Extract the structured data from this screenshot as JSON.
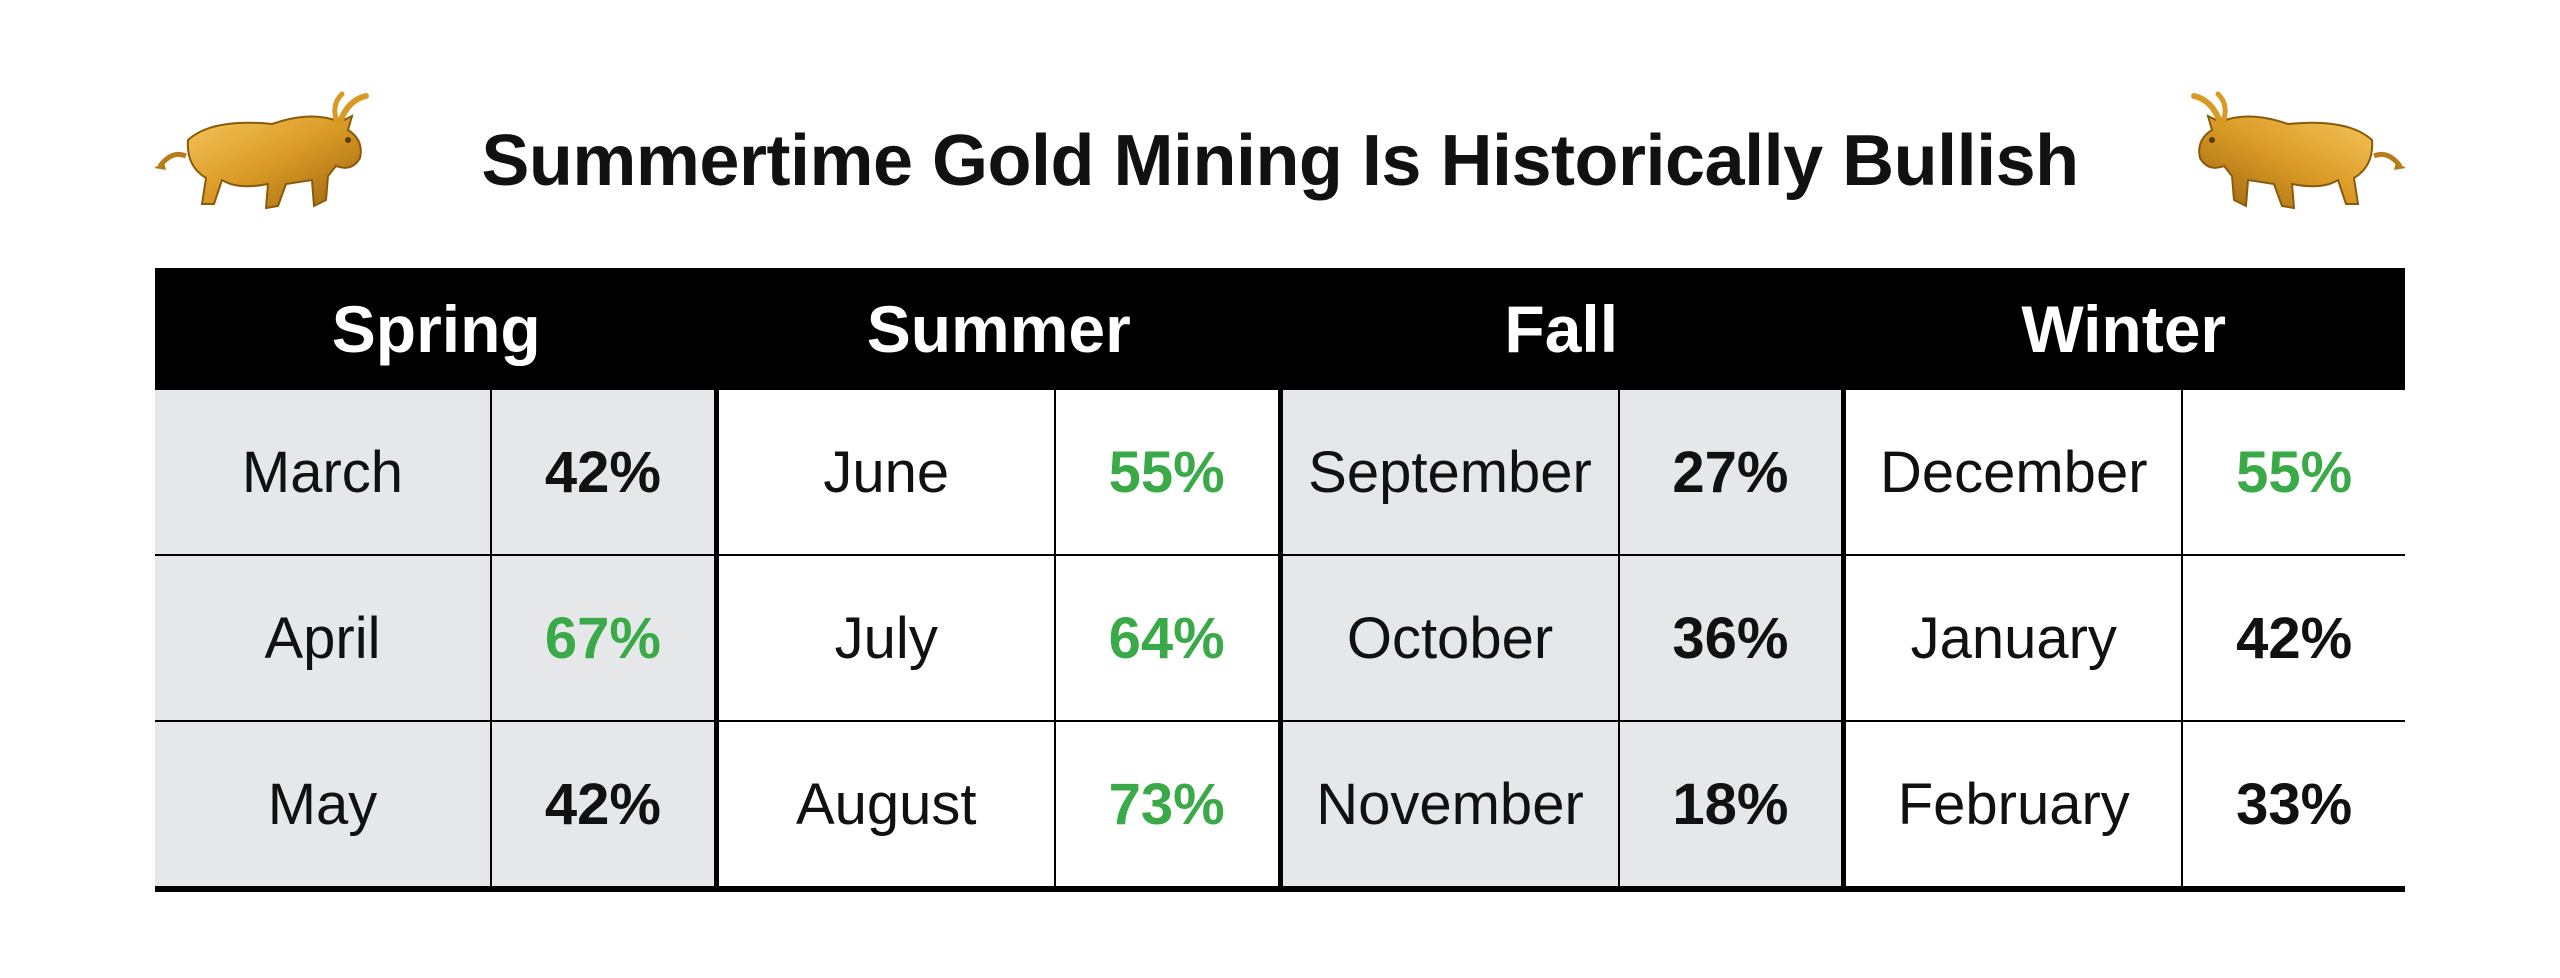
{
  "chart_data": {
    "type": "table",
    "title": "Summertime Gold Mining Is Historically Bullish",
    "colors": {
      "highlight": "#3aaa48",
      "normal": "#111111",
      "header_bg": "#000000",
      "shaded_bg": "#e6e7e8"
    },
    "seasons": [
      {
        "name": "Spring",
        "shaded": true,
        "months": [
          {
            "month": "March",
            "value": "42%",
            "highlight": false
          },
          {
            "month": "April",
            "value": "67%",
            "highlight": true
          },
          {
            "month": "May",
            "value": "42%",
            "highlight": false
          }
        ]
      },
      {
        "name": "Summer",
        "shaded": false,
        "months": [
          {
            "month": "June",
            "value": "55%",
            "highlight": true
          },
          {
            "month": "July",
            "value": "64%",
            "highlight": true
          },
          {
            "month": "August",
            "value": "73%",
            "highlight": true
          }
        ]
      },
      {
        "name": "Fall",
        "shaded": true,
        "months": [
          {
            "month": "September",
            "value": "27%",
            "highlight": false
          },
          {
            "month": "October",
            "value": "36%",
            "highlight": false
          },
          {
            "month": "November",
            "value": "18%",
            "highlight": false
          }
        ]
      },
      {
        "name": "Winter",
        "shaded": false,
        "months": [
          {
            "month": "December",
            "value": "55%",
            "highlight": true
          },
          {
            "month": "January",
            "value": "42%",
            "highlight": false
          },
          {
            "month": "February",
            "value": "33%",
            "highlight": false
          }
        ]
      }
    ]
  },
  "icons": {
    "left": "gold-bull-icon",
    "right": "gold-bull-icon"
  }
}
